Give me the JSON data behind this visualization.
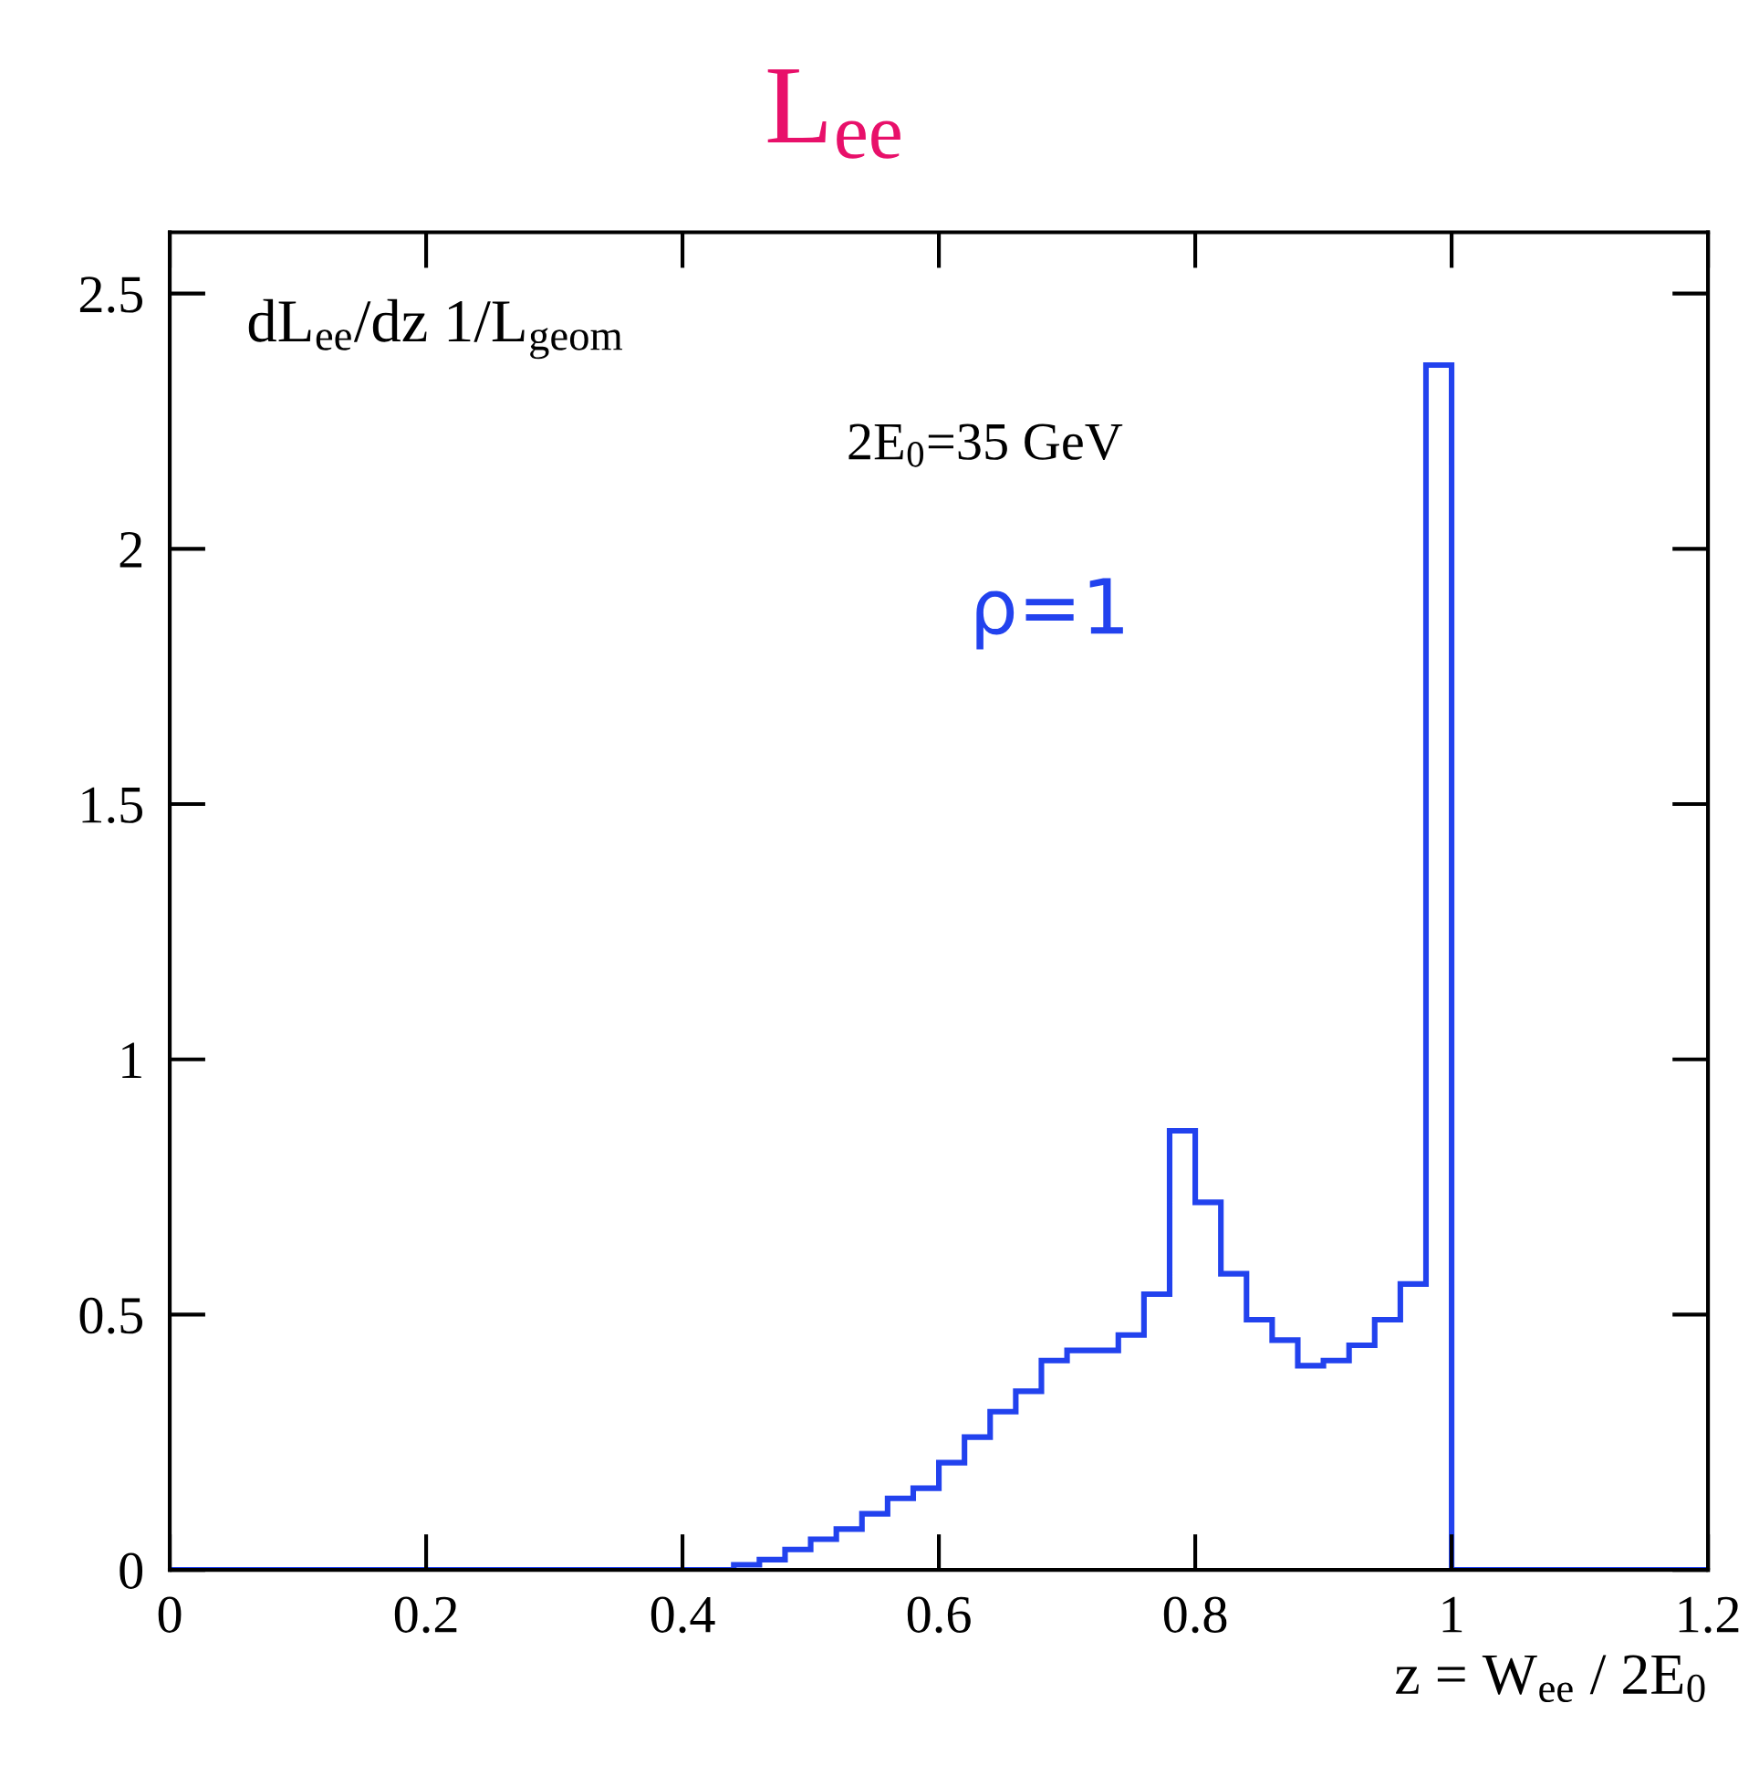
{
  "chart_data": {
    "type": "histogram",
    "title": "L$_{ee}$",
    "xlabel": "z = W$_{ee}$ / 2E$_{0}$",
    "ylabel": "dL$_{ee}$/dz 1/L$_{geom}$",
    "annotations": [
      "2E$_{0}$=35 GeV"
    ],
    "bins": [
      0,
      0.02,
      0.04,
      0.06,
      0.08,
      0.1,
      0.12,
      0.14,
      0.16,
      0.18,
      0.2,
      0.22,
      0.24,
      0.26,
      0.28,
      0.3,
      0.32,
      0.34,
      0.36,
      0.38,
      0.4,
      0.42,
      0.44,
      0.46,
      0.48,
      0.5,
      0.52,
      0.54,
      0.56,
      0.58,
      0.6,
      0.62,
      0.64,
      0.66,
      0.68,
      0.7,
      0.72,
      0.74,
      0.76,
      0.78,
      0.8,
      0.82,
      0.84,
      0.86,
      0.88,
      0.9,
      0.92,
      0.94,
      0.96,
      0.98,
      1.0,
      1.02,
      1.04,
      1.06,
      1.08,
      1.1,
      1.12,
      1.14,
      1.16,
      1.18,
      1.2
    ],
    "series": [
      {
        "name": "ρ=1",
        "color": "#2242ee",
        "values": [
          0,
          0,
          0,
          0,
          0,
          0,
          0,
          0,
          0,
          0,
          0,
          0,
          0,
          0,
          0,
          0,
          0,
          0,
          0,
          0,
          0,
          0,
          0.01,
          0.02,
          0.04,
          0.06,
          0.08,
          0.11,
          0.14,
          0.16,
          0.21,
          0.26,
          0.31,
          0.35,
          0.41,
          0.43,
          0.43,
          0.46,
          0.54,
          0.86,
          0.72,
          0.58,
          0.49,
          0.45,
          0.4,
          0.41,
          0.44,
          0.49,
          0.56,
          2.36,
          0,
          0,
          0,
          0,
          0,
          0,
          0,
          0,
          0,
          0
        ]
      }
    ],
    "xlim": [
      0,
      1.2
    ],
    "ylim": [
      0,
      2.62
    ],
    "xticks": [
      0,
      0.2,
      0.4,
      0.6,
      0.8,
      1,
      1.2
    ],
    "yticks": [
      0,
      0.5,
      1,
      1.5,
      2,
      2.5
    ],
    "grid": false,
    "legend": false
  }
}
